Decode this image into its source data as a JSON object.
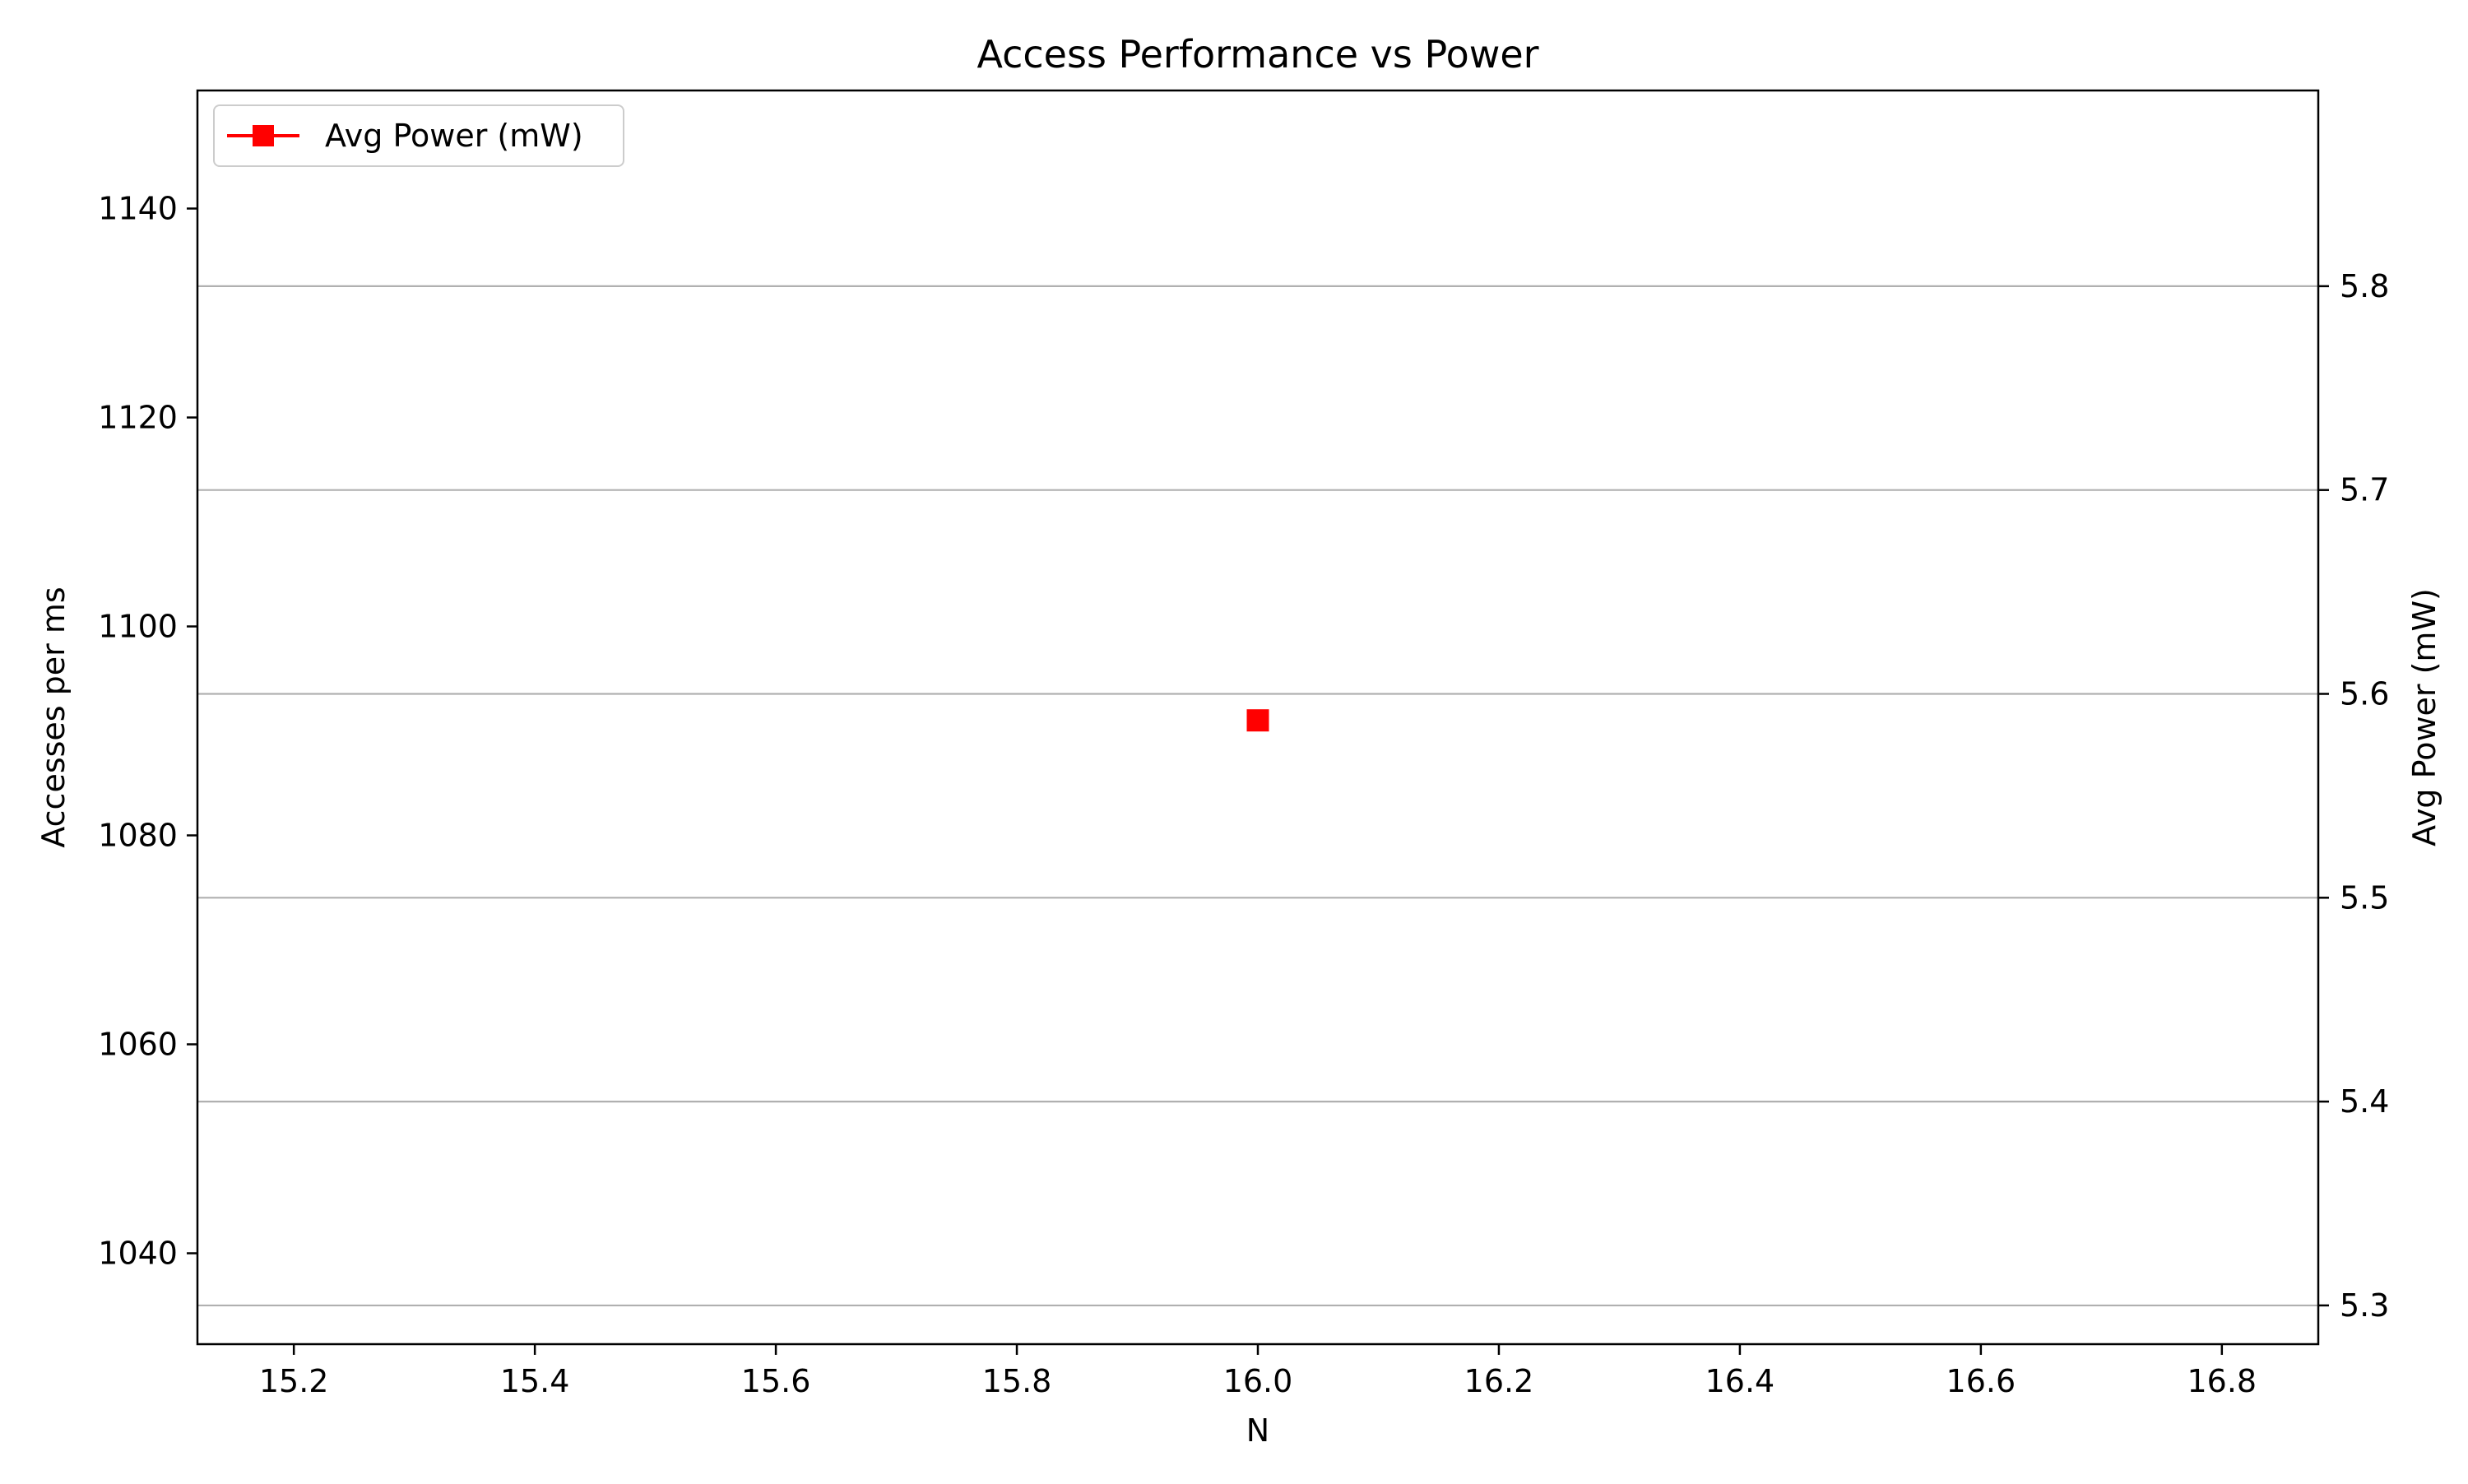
{
  "chart_data": {
    "type": "scatter",
    "title": "Access Performance vs Power",
    "xlabel": "N",
    "ylabel_left": "Accesses per ms",
    "ylabel_right": "Avg Power (mW)",
    "xlim": [
      15.12,
      16.88
    ],
    "ylim_left": [
      1031.3,
      1151.3
    ],
    "ylim_right": [
      5.281,
      5.896
    ],
    "x_ticks": [
      "15.2",
      "15.4",
      "15.6",
      "15.8",
      "16.0",
      "16.2",
      "16.4",
      "16.6",
      "16.8"
    ],
    "y_left_ticks": [
      "1040",
      "1060",
      "1080",
      "1100",
      "1120",
      "1140"
    ],
    "y_right_ticks": [
      "5.3",
      "5.4",
      "5.5",
      "5.6",
      "5.7",
      "5.8"
    ],
    "grid": "horizontal lines at right-axis ticks",
    "legend_position": "top-left",
    "series": [
      {
        "name": "Avg Power (mW)",
        "axis": "right",
        "color": "#ff0000",
        "marker": "square",
        "x": [
          16.0
        ],
        "y": [
          5.587
        ]
      }
    ]
  }
}
